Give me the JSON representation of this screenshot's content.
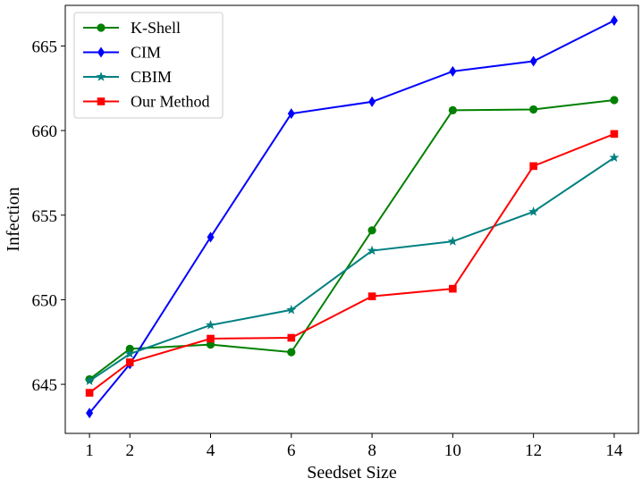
{
  "chart_data": {
    "type": "line",
    "xlabel": "Seedset Size",
    "ylabel": "Infection",
    "x": [
      1,
      2,
      4,
      6,
      8,
      10,
      12,
      14
    ],
    "xlim": [
      0.4,
      14.6
    ],
    "ylim": [
      642.1,
      667.4
    ],
    "xticks": [
      "1",
      "2",
      "4",
      "6",
      "8",
      "10",
      "12",
      "14"
    ],
    "yticks": [
      645,
      650,
      655,
      660,
      665
    ],
    "grid": false,
    "legend_position": "top-left",
    "series": [
      {
        "name": "K-Shell",
        "color": "#008000",
        "marker": "circle",
        "values": [
          645.3,
          647.1,
          647.35,
          646.9,
          654.1,
          661.2,
          661.25,
          661.8
        ]
      },
      {
        "name": "CIM",
        "color": "#0000ff",
        "marker": "diamond",
        "values": [
          643.3,
          646.2,
          653.7,
          661.0,
          661.7,
          663.5,
          664.1,
          666.5
        ]
      },
      {
        "name": "CBIM",
        "color": "#008080",
        "marker": "star",
        "values": [
          645.2,
          646.8,
          648.5,
          649.4,
          652.9,
          653.45,
          655.2,
          658.4
        ]
      },
      {
        "name": "Our Method",
        "color": "#ff0000",
        "marker": "square",
        "values": [
          644.5,
          646.3,
          647.7,
          647.75,
          650.2,
          650.65,
          657.9,
          659.8
        ]
      }
    ]
  }
}
